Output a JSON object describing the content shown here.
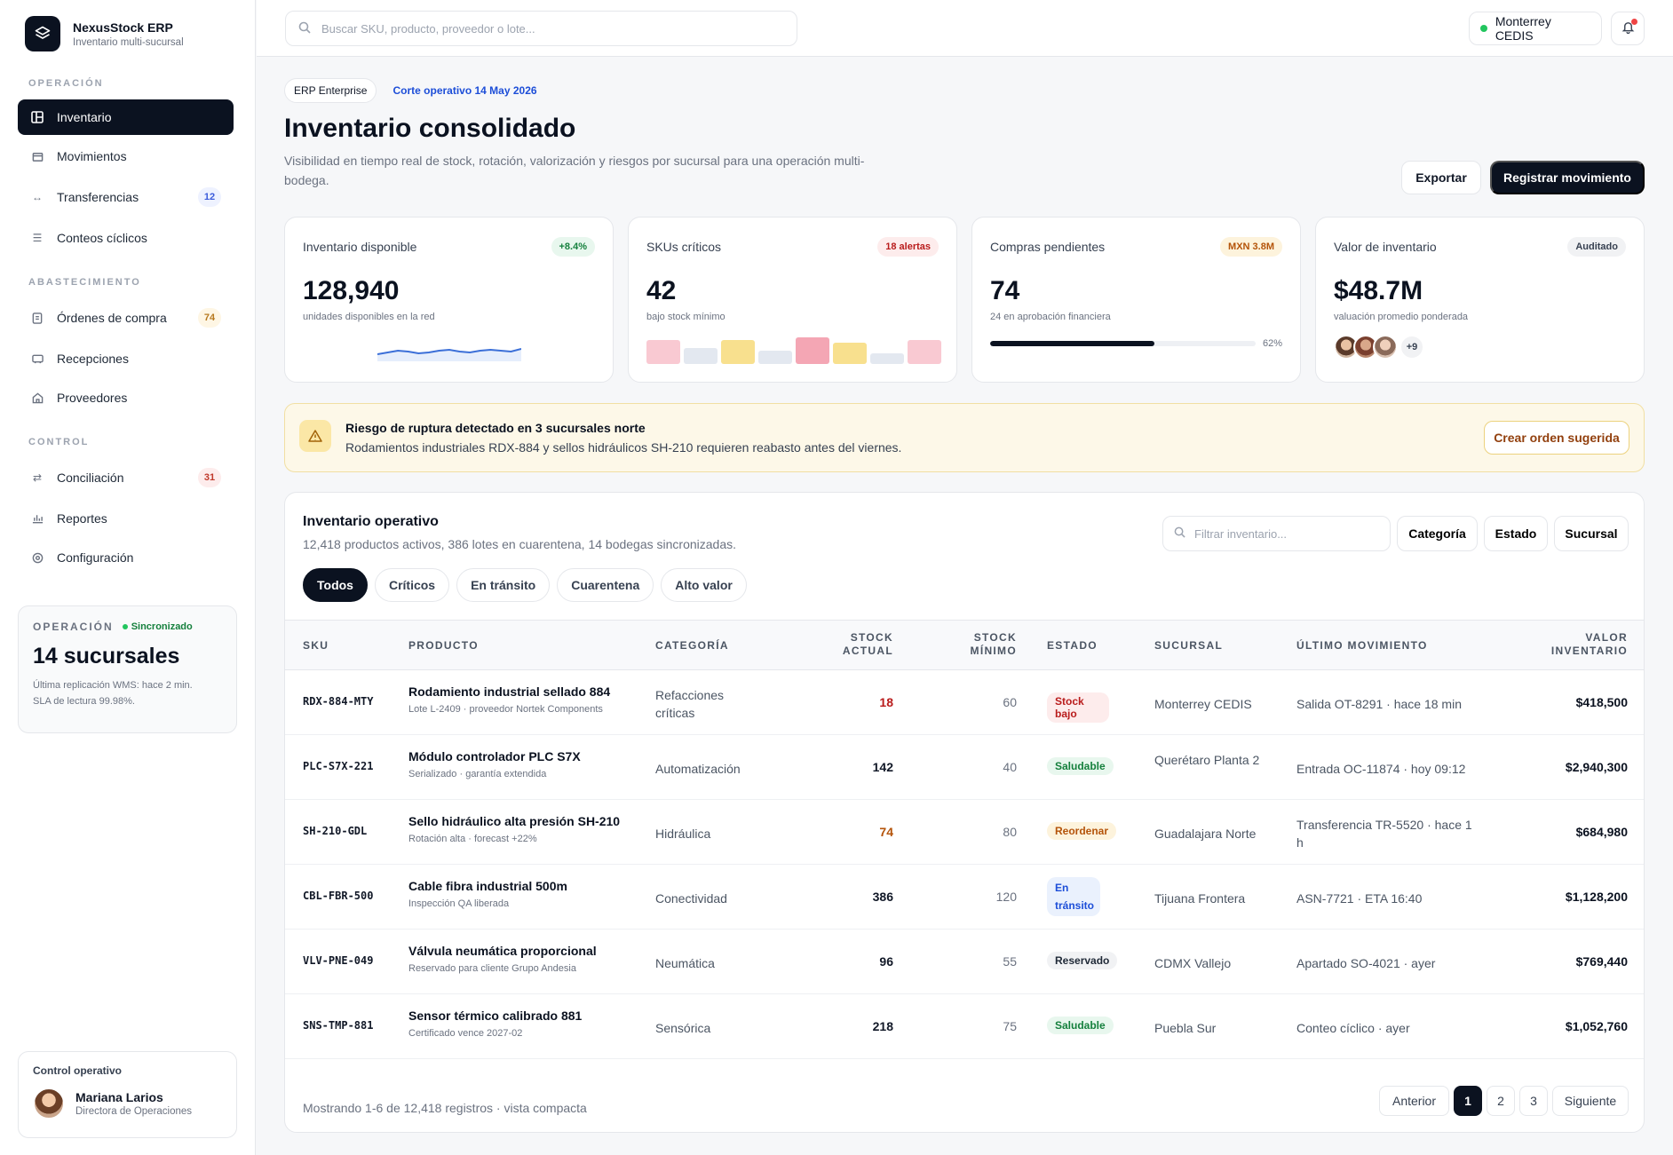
{
  "brand": {
    "name": "NexusStock ERP",
    "subtitle": "Inventario multi-sucursal"
  },
  "sidebar": {
    "sections": [
      {
        "label": "OPERACIÓN"
      },
      {
        "label": "ABASTECIMIENTO"
      },
      {
        "label": "CONTROL"
      }
    ],
    "items": [
      {
        "label": "Inventario",
        "icon": "grid-icon",
        "active": true
      },
      {
        "label": "Movimientos",
        "icon": "box-icon"
      },
      {
        "label": "Transferencias",
        "icon": "arrows-horizontal-icon",
        "badge": "12"
      },
      {
        "label": "Conteos cíclicos",
        "icon": "list-icon"
      },
      {
        "label": "Órdenes de compra",
        "icon": "document-icon",
        "badge": "74"
      },
      {
        "label": "Recepciones",
        "icon": "tray-icon"
      },
      {
        "label": "Proveedores",
        "icon": "store-icon"
      },
      {
        "label": "Conciliación",
        "icon": "swap-icon",
        "badge": "31"
      },
      {
        "label": "Reportes",
        "icon": "bar-chart-icon"
      },
      {
        "label": "Configuración",
        "icon": "gear-icon"
      }
    ],
    "ops_card": {
      "label": "OPERACIÓN",
      "status": "Sincronizado",
      "value": "14 sucursales",
      "note_1": "Última replicación WMS: hace 2 min.",
      "note_2": "SLA de lectura 99.98%."
    },
    "user": {
      "title": "Control operativo",
      "name": "Mariana Larios",
      "role": "Directora de Operaciones"
    }
  },
  "topbar": {
    "search_placeholder": "Buscar SKU, producto, proveedor o lote...",
    "branch": "Monterrey CEDIS"
  },
  "header": {
    "tag": "ERP Enterprise",
    "date": "Corte operativo 14 May 2026",
    "title": "Inventario consolidado",
    "description": "Visibilidad en tiempo real de stock, rotación, valorización y riesgos por sucursal para una operación multi-bodega.",
    "export_label": "Exportar",
    "register_label": "Registrar movimiento"
  },
  "kpis": [
    {
      "label": "Inventario disponible",
      "pill": "+8.4%",
      "value": "128,940",
      "sub": "unidades disponibles en la red",
      "trend": [
        14,
        12,
        10,
        11,
        13,
        12,
        10,
        9,
        11,
        12,
        10,
        9,
        10,
        11,
        8
      ]
    },
    {
      "label": "SKUs críticos",
      "pill": "18 alertas",
      "value": "42",
      "sub": "bajo stock mínimo",
      "levels": [
        0.9,
        0.6,
        0.9,
        0.5,
        1.0,
        0.8,
        0.4,
        0.9
      ]
    },
    {
      "label": "Compras pendientes",
      "pill": "MXN 3.8M",
      "value": "74",
      "sub": "24 en aprobación financiera",
      "progress": 62,
      "progress_label": "62%"
    },
    {
      "label": "Valor de inventario",
      "pill": "Auditado",
      "value": "$48.7M",
      "sub": "valuación promedio ponderada",
      "more": "+9"
    }
  ],
  "alert": {
    "title": "Riesgo de ruptura detectado en 3 sucursales norte",
    "text": "Rodamientos industriales RDX-884 y sellos hidráulicos SH-210 requieren reabasto antes del viernes.",
    "button": "Crear orden sugerida"
  },
  "table": {
    "title": "Inventario operativo",
    "subtitle": "12,418 productos activos, 386 lotes en cuarentena, 14 bodegas sincronizadas.",
    "filter_placeholder": "Filtrar inventario...",
    "filters": [
      "Categoría",
      "Estado",
      "Sucursal"
    ],
    "tabs": [
      "Todos",
      "Críticos",
      "En tránsito",
      "Cuarentena",
      "Alto valor"
    ],
    "headers": {
      "sku": "SKU",
      "product": "PRODUCTO",
      "category": "CATEGORÍA",
      "stock": [
        "STOCK",
        "ACTUAL"
      ],
      "min": [
        "STOCK",
        "MÍNIMO"
      ],
      "status": "ESTADO",
      "branch": "SUCURSAL",
      "last": "ÚLTIMO MOVIMIENTO",
      "value": [
        "VALOR",
        "INVENTARIO"
      ]
    },
    "rows": [
      {
        "sku": "RDX-884-MTY",
        "name": "Rodamiento industrial sellado 884",
        "note": "Lote L-2409 · proveedor Nortek Components",
        "category": "Refacciones críticas",
        "stock": "18",
        "stock_color": "#b91c1c",
        "min": "60",
        "status": "Stock bajo",
        "status_kind": "low",
        "branch": "Monterrey CEDIS",
        "last": "Salida OT-8291 · hace 18 min",
        "value": "$418,500"
      },
      {
        "sku": "PLC-S7X-221",
        "name": "Módulo controlador PLC S7X",
        "note": "Serializado · garantía extendida",
        "category": "Automatización",
        "stock": "142",
        "stock_color": "#111827",
        "min": "40",
        "status": "Saludable",
        "status_kind": "ok",
        "branch": "Querétaro Planta 2",
        "last": "Entrada OC-11874 · hoy 09:12",
        "value": "$2,940,300"
      },
      {
        "sku": "SH-210-GDL",
        "name": "Sello hidráulico alta presión SH-210",
        "note": "Rotación alta · forecast +22%",
        "category": "Hidráulica",
        "stock": "74",
        "stock_color": "#b45309",
        "min": "80",
        "status": "Reordenar",
        "status_kind": "re",
        "branch": "Guadalajara Norte",
        "last": "Transferencia TR-5520 · hace 1 h",
        "value": "$684,980"
      },
      {
        "sku": "CBL-FBR-500",
        "name": "Cable fibra industrial 500m",
        "note": "Inspección QA liberada",
        "category": "Conectividad",
        "stock": "386",
        "stock_color": "#111827",
        "min": "120",
        "status": "En tránsito",
        "status_kind": "tr",
        "branch": "Tijuana Frontera",
        "last": "ASN-7721 · ETA 16:40",
        "value": "$1,128,200"
      },
      {
        "sku": "VLV-PNE-049",
        "name": "Válvula neumática proporcional",
        "note": "Reservado para cliente Grupo Andesia",
        "category": "Neumática",
        "stock": "96",
        "stock_color": "#111827",
        "min": "55",
        "status": "Reservado",
        "status_kind": "rs",
        "branch": "CDMX Vallejo",
        "last": "Apartado SO-4021 · ayer",
        "value": "$769,440"
      },
      {
        "sku": "SNS-TMP-881",
        "name": "Sensor térmico calibrado 881",
        "note": "Certificado vence 2027-02",
        "category": "Sensórica",
        "stock": "218",
        "stock_color": "#111827",
        "min": "75",
        "status": "Saludable",
        "status_kind": "ok",
        "branch": "Puebla Sur",
        "last": "Conteo cíclico · ayer",
        "value": "$1,052,760"
      }
    ],
    "footer": "Mostrando 1-6 de 12,418 registros · vista compacta",
    "pagination": {
      "prev": "Anterior",
      "pages": [
        "1",
        "2",
        "3"
      ],
      "next": "Siguiente"
    }
  }
}
